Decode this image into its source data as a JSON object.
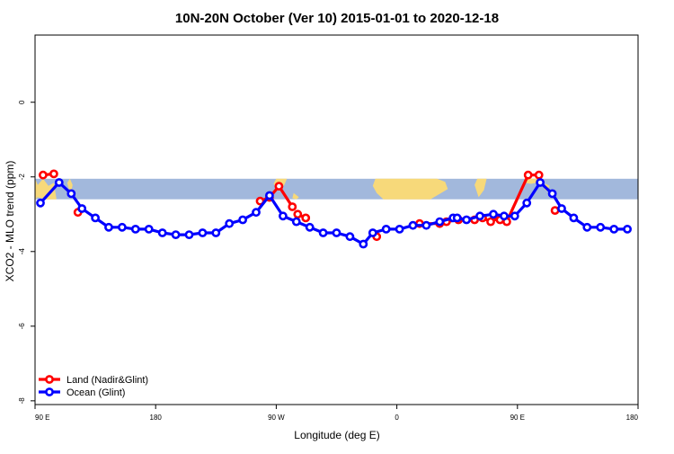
{
  "chart_data": {
    "type": "line",
    "title": "10N-20N October (Ver 10)   2015-01-01 to 2020-12-18",
    "xlabel": "Longitude (deg E)",
    "ylabel": "XCO2 - MLO trend (ppm)",
    "x_ticks": [
      {
        "value": 90,
        "label": "90 E"
      },
      {
        "value": 180,
        "label": "180"
      },
      {
        "value": 270,
        "label": "90 W"
      },
      {
        "value": 360,
        "label": "0"
      },
      {
        "value": 450,
        "label": "90 E"
      },
      {
        "value": 540,
        "label": "180"
      }
    ],
    "y_ticks": [
      0,
      -2,
      -4,
      -6,
      -8
    ],
    "xlim": [
      90,
      540
    ],
    "ylim": [
      -8.1,
      1.8
    ],
    "grid": false,
    "legend_position": "bottom-left",
    "map_band": {
      "ymin": -2.6,
      "ymax": -2.05,
      "ocean_color": "#a2b8dc",
      "land_color": "#f7d97a"
    },
    "series": [
      {
        "name": "Land (Nadir&Glint)",
        "color": "#ff0000",
        "segments": [
          {
            "x": [
              96,
              104
            ],
            "y": [
              -1.95,
              -1.92
            ]
          },
          {
            "x": [
              122
            ],
            "y": [
              -2.95
            ]
          },
          {
            "x": [
              258,
              265,
              272,
              282
            ],
            "y": [
              -2.65,
              -2.55,
              -2.25,
              -2.8
            ]
          },
          {
            "x": [
              286,
              292
            ],
            "y": [
              -3.0,
              -3.1
            ]
          },
          {
            "x": [
              345
            ],
            "y": [
              -3.6
            ]
          },
          {
            "x": [
              377,
              392,
              397,
              406,
              418,
              424,
              430,
              436
            ],
            "y": [
              -3.25,
              -3.25,
              -3.2,
              -3.15,
              -3.15,
              -3.1,
              -3.2,
              -3.1
            ]
          },
          {
            "x": [
              437,
              442,
              458,
              466
            ],
            "y": [
              -3.15,
              -3.2,
              -1.95,
              -1.95
            ]
          },
          {
            "x": [
              478
            ],
            "y": [
              -2.9
            ]
          }
        ]
      },
      {
        "name": "Ocean (Glint)",
        "color": "#0000ff",
        "segments": [
          {
            "x": [
              94,
              108,
              117,
              125,
              135,
              145,
              155,
              165,
              175,
              185,
              195,
              205,
              215,
              225,
              235,
              245,
              255,
              265,
              275,
              285,
              295,
              305,
              315,
              325,
              335,
              342,
              352,
              362,
              372,
              382,
              392,
              402,
              405,
              412,
              422,
              432,
              440,
              448,
              457,
              467,
              476,
              483,
              492,
              502,
              512,
              522,
              532
            ],
            "y": [
              -2.7,
              -2.15,
              -2.45,
              -2.85,
              -3.1,
              -3.35,
              -3.35,
              -3.4,
              -3.4,
              -3.5,
              -3.55,
              -3.55,
              -3.5,
              -3.5,
              -3.25,
              -3.15,
              -2.95,
              -2.5,
              -3.05,
              -3.2,
              -3.35,
              -3.5,
              -3.5,
              -3.6,
              -3.8,
              -3.5,
              -3.4,
              -3.4,
              -3.3,
              -3.3,
              -3.2,
              -3.1,
              -3.1,
              -3.15,
              -3.05,
              -3.0,
              -3.05,
              -3.05,
              -2.7,
              -2.15,
              -2.45,
              -2.85,
              -3.1,
              -3.35,
              -3.35,
              -3.4,
              -3.4
            ]
          }
        ]
      }
    ]
  }
}
